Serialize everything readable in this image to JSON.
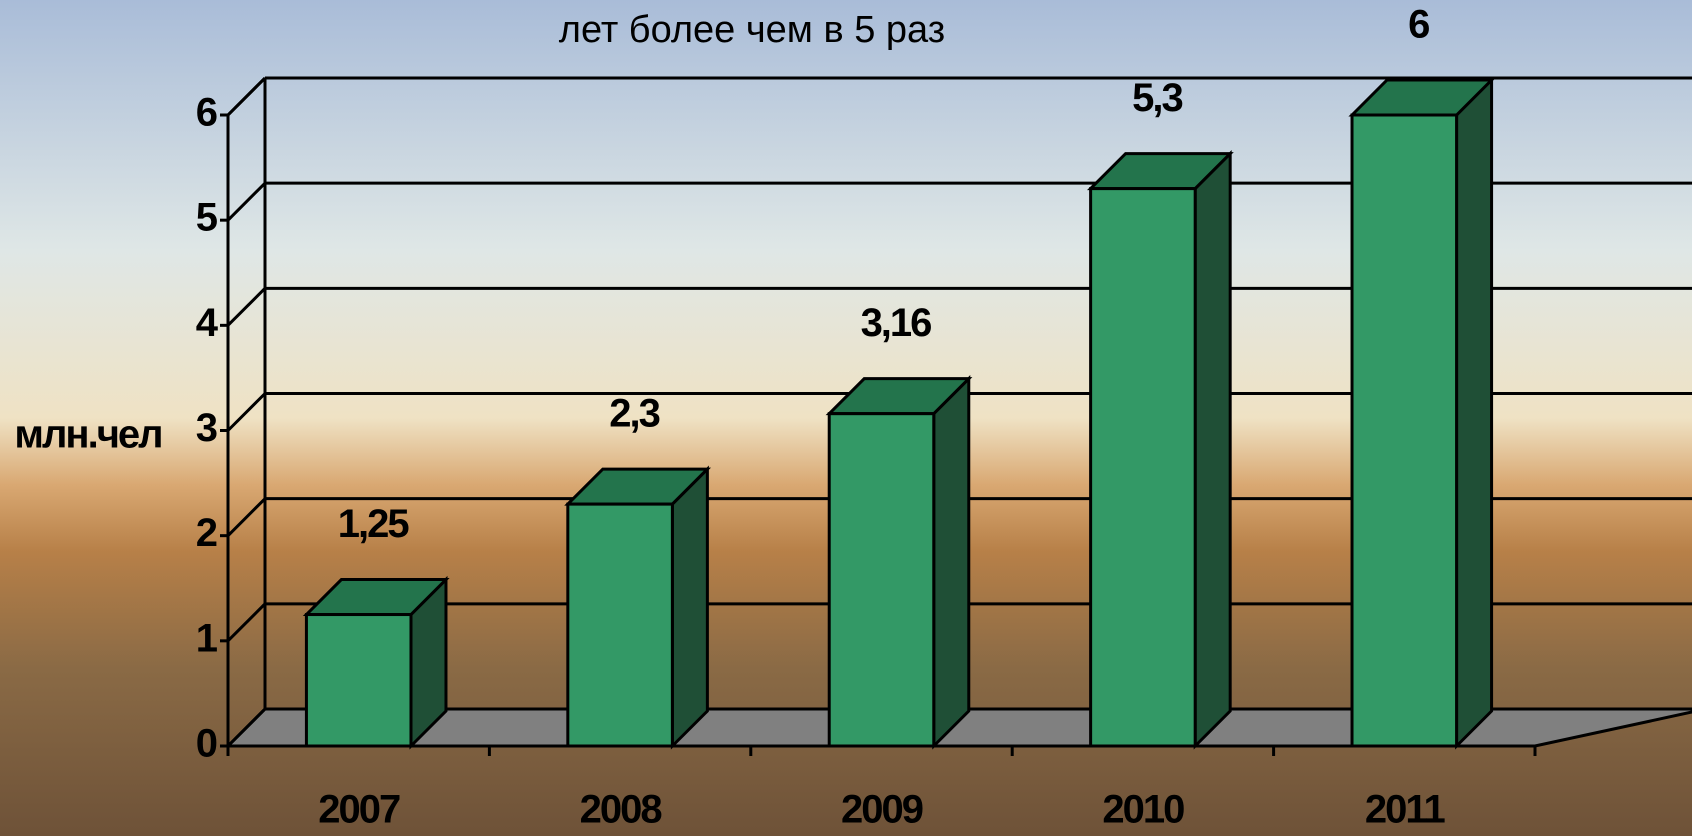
{
  "chart_data": {
    "type": "bar3d",
    "title": "лет более чем в 5 раз",
    "y_axis_label": "млн.чел",
    "categories": [
      "2007",
      "2008",
      "2009",
      "2010",
      "2011"
    ],
    "values": [
      1.25,
      2.3,
      3.16,
      5.3,
      6
    ],
    "value_labels": [
      "1,25",
      "2,3",
      "3,16",
      "5,3",
      "6"
    ],
    "color": "#339966",
    "ylim": [
      0,
      6
    ],
    "yticks": [
      0,
      1,
      2,
      3,
      4,
      5,
      6
    ],
    "grid": true
  }
}
